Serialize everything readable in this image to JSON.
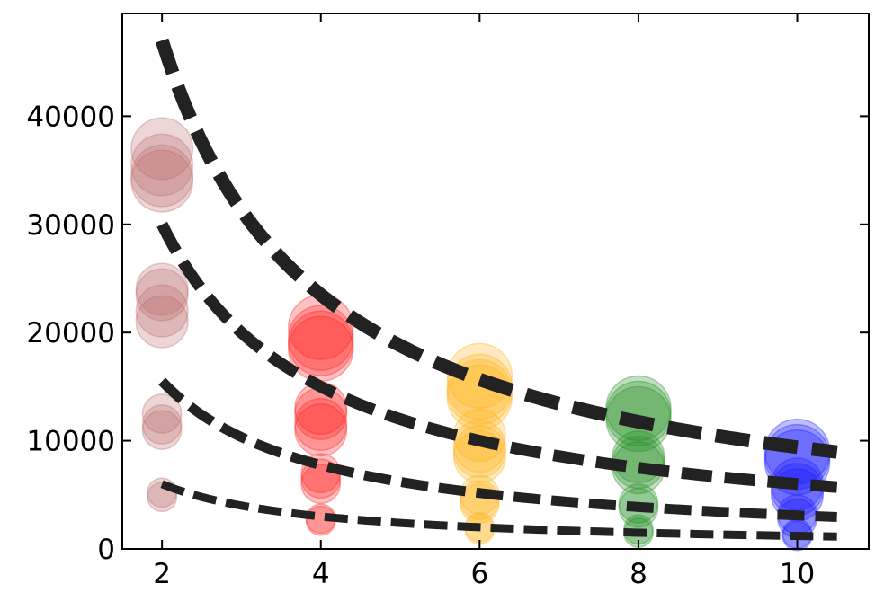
{
  "chart_data": {
    "type": "scatter",
    "title": "",
    "xlabel": "",
    "ylabel": "",
    "xlim": [
      1.5,
      10.9
    ],
    "ylim": [
      0,
      49500
    ],
    "grid": false,
    "legend": "none",
    "x_ticks": [
      2,
      4,
      6,
      8,
      10
    ],
    "x_tick_labels": [
      "2",
      "4",
      "6",
      "8",
      "10"
    ],
    "y_ticks": [
      0,
      10000,
      20000,
      30000,
      40000
    ],
    "y_tick_labels": [
      "0",
      "10000",
      "20000",
      "30000",
      "40000"
    ],
    "series": [
      {
        "color": "#bc6b6b",
        "points": [
          {
            "x": 2,
            "y": 37000,
            "size": 0.95
          },
          {
            "x": 2,
            "y": 35500,
            "size": 0.95
          },
          {
            "x": 2,
            "y": 34500,
            "size": 0.95
          },
          {
            "x": 2,
            "y": 34000,
            "size": 0.95
          },
          {
            "x": 2,
            "y": 24000,
            "size": 0.8
          },
          {
            "x": 2,
            "y": 23500,
            "size": 0.8
          },
          {
            "x": 2,
            "y": 22000,
            "size": 0.8
          },
          {
            "x": 2,
            "y": 21000,
            "size": 0.8
          },
          {
            "x": 2,
            "y": 12500,
            "size": 0.6
          },
          {
            "x": 2,
            "y": 11500,
            "size": 0.6
          },
          {
            "x": 2,
            "y": 11000,
            "size": 0.6
          },
          {
            "x": 2,
            "y": 5200,
            "size": 0.45
          },
          {
            "x": 2,
            "y": 4800,
            "size": 0.45
          }
        ]
      },
      {
        "color": "#ff2020",
        "points": [
          {
            "x": 4,
            "y": 20500,
            "size": 1.0
          },
          {
            "x": 4,
            "y": 19500,
            "size": 1.0
          },
          {
            "x": 4,
            "y": 19000,
            "size": 1.0
          },
          {
            "x": 4,
            "y": 18500,
            "size": 1.0
          },
          {
            "x": 4,
            "y": 13000,
            "size": 0.8
          },
          {
            "x": 4,
            "y": 12500,
            "size": 0.8
          },
          {
            "x": 4,
            "y": 11500,
            "size": 0.8
          },
          {
            "x": 4,
            "y": 11000,
            "size": 0.8
          },
          {
            "x": 4,
            "y": 7000,
            "size": 0.6
          },
          {
            "x": 4,
            "y": 6500,
            "size": 0.6
          },
          {
            "x": 4,
            "y": 6000,
            "size": 0.6
          },
          {
            "x": 4,
            "y": 2800,
            "size": 0.45
          },
          {
            "x": 4,
            "y": 2600,
            "size": 0.45
          }
        ]
      },
      {
        "color": "#ffb31a",
        "points": [
          {
            "x": 6,
            "y": 16000,
            "size": 1.0
          },
          {
            "x": 6,
            "y": 15000,
            "size": 1.0
          },
          {
            "x": 6,
            "y": 14500,
            "size": 1.0
          },
          {
            "x": 6,
            "y": 14000,
            "size": 1.0
          },
          {
            "x": 6,
            "y": 10500,
            "size": 0.8
          },
          {
            "x": 6,
            "y": 9500,
            "size": 0.8
          },
          {
            "x": 6,
            "y": 9000,
            "size": 0.8
          },
          {
            "x": 6,
            "y": 8500,
            "size": 0.8
          },
          {
            "x": 6,
            "y": 5000,
            "size": 0.6
          },
          {
            "x": 6,
            "y": 4500,
            "size": 0.6
          },
          {
            "x": 6,
            "y": 4200,
            "size": 0.6
          },
          {
            "x": 6,
            "y": 2000,
            "size": 0.45
          },
          {
            "x": 6,
            "y": 1800,
            "size": 0.45
          }
        ]
      },
      {
        "color": "#1f8c1f",
        "points": [
          {
            "x": 8,
            "y": 13000,
            "size": 1.0
          },
          {
            "x": 8,
            "y": 12500,
            "size": 1.0
          },
          {
            "x": 8,
            "y": 12000,
            "size": 1.0
          },
          {
            "x": 8,
            "y": 8500,
            "size": 0.8
          },
          {
            "x": 8,
            "y": 8000,
            "size": 0.8
          },
          {
            "x": 8,
            "y": 7500,
            "size": 0.8
          },
          {
            "x": 8,
            "y": 4200,
            "size": 0.6
          },
          {
            "x": 8,
            "y": 3800,
            "size": 0.6
          },
          {
            "x": 8,
            "y": 1800,
            "size": 0.45
          },
          {
            "x": 8,
            "y": 1500,
            "size": 0.45
          }
        ]
      },
      {
        "color": "#1a1aff",
        "points": [
          {
            "x": 10,
            "y": 9000,
            "size": 1.0
          },
          {
            "x": 10,
            "y": 8500,
            "size": 1.0
          },
          {
            "x": 10,
            "y": 8000,
            "size": 1.0
          },
          {
            "x": 10,
            "y": 6000,
            "size": 0.8
          },
          {
            "x": 10,
            "y": 5500,
            "size": 0.8
          },
          {
            "x": 10,
            "y": 5000,
            "size": 0.8
          },
          {
            "x": 10,
            "y": 3200,
            "size": 0.6
          },
          {
            "x": 10,
            "y": 2800,
            "size": 0.6
          },
          {
            "x": 10,
            "y": 1400,
            "size": 0.45
          },
          {
            "x": 10,
            "y": 1200,
            "size": 0.45
          }
        ]
      }
    ],
    "fit_curves": [
      {
        "x_range": [
          2,
          10.5
        ],
        "points": [
          [
            2,
            47000
          ],
          [
            2.5,
            37600
          ],
          [
            3,
            31333
          ],
          [
            4,
            23500
          ],
          [
            5,
            18800
          ],
          [
            6,
            15667
          ],
          [
            7,
            13429
          ],
          [
            8,
            11750
          ],
          [
            9,
            10444
          ],
          [
            10.5,
            8952
          ]
        ],
        "weight": "heavy"
      },
      {
        "x_range": [
          2,
          10.5
        ],
        "points": [
          [
            2,
            30000
          ],
          [
            2.5,
            24000
          ],
          [
            3,
            20000
          ],
          [
            4,
            15000
          ],
          [
            5,
            12000
          ],
          [
            6,
            10000
          ],
          [
            7,
            8571
          ],
          [
            8,
            7500
          ],
          [
            9,
            6667
          ],
          [
            10.5,
            5714
          ]
        ],
        "weight": "medium"
      },
      {
        "x_range": [
          2,
          10.5
        ],
        "points": [
          [
            2,
            15500
          ],
          [
            2.5,
            12400
          ],
          [
            3,
            10333
          ],
          [
            4,
            7750
          ],
          [
            5,
            6200
          ],
          [
            6,
            5167
          ],
          [
            7,
            4429
          ],
          [
            8,
            3875
          ],
          [
            9,
            3444
          ],
          [
            10.5,
            2952
          ]
        ],
        "weight": "normal"
      },
      {
        "x_range": [
          2,
          10.5
        ],
        "points": [
          [
            2,
            6000
          ],
          [
            2.5,
            4800
          ],
          [
            3,
            4000
          ],
          [
            4,
            3000
          ],
          [
            5,
            2400
          ],
          [
            6,
            2000
          ],
          [
            7,
            1714
          ],
          [
            8,
            1500
          ],
          [
            9,
            1333
          ],
          [
            10.5,
            1143
          ]
        ],
        "weight": "light"
      }
    ]
  }
}
